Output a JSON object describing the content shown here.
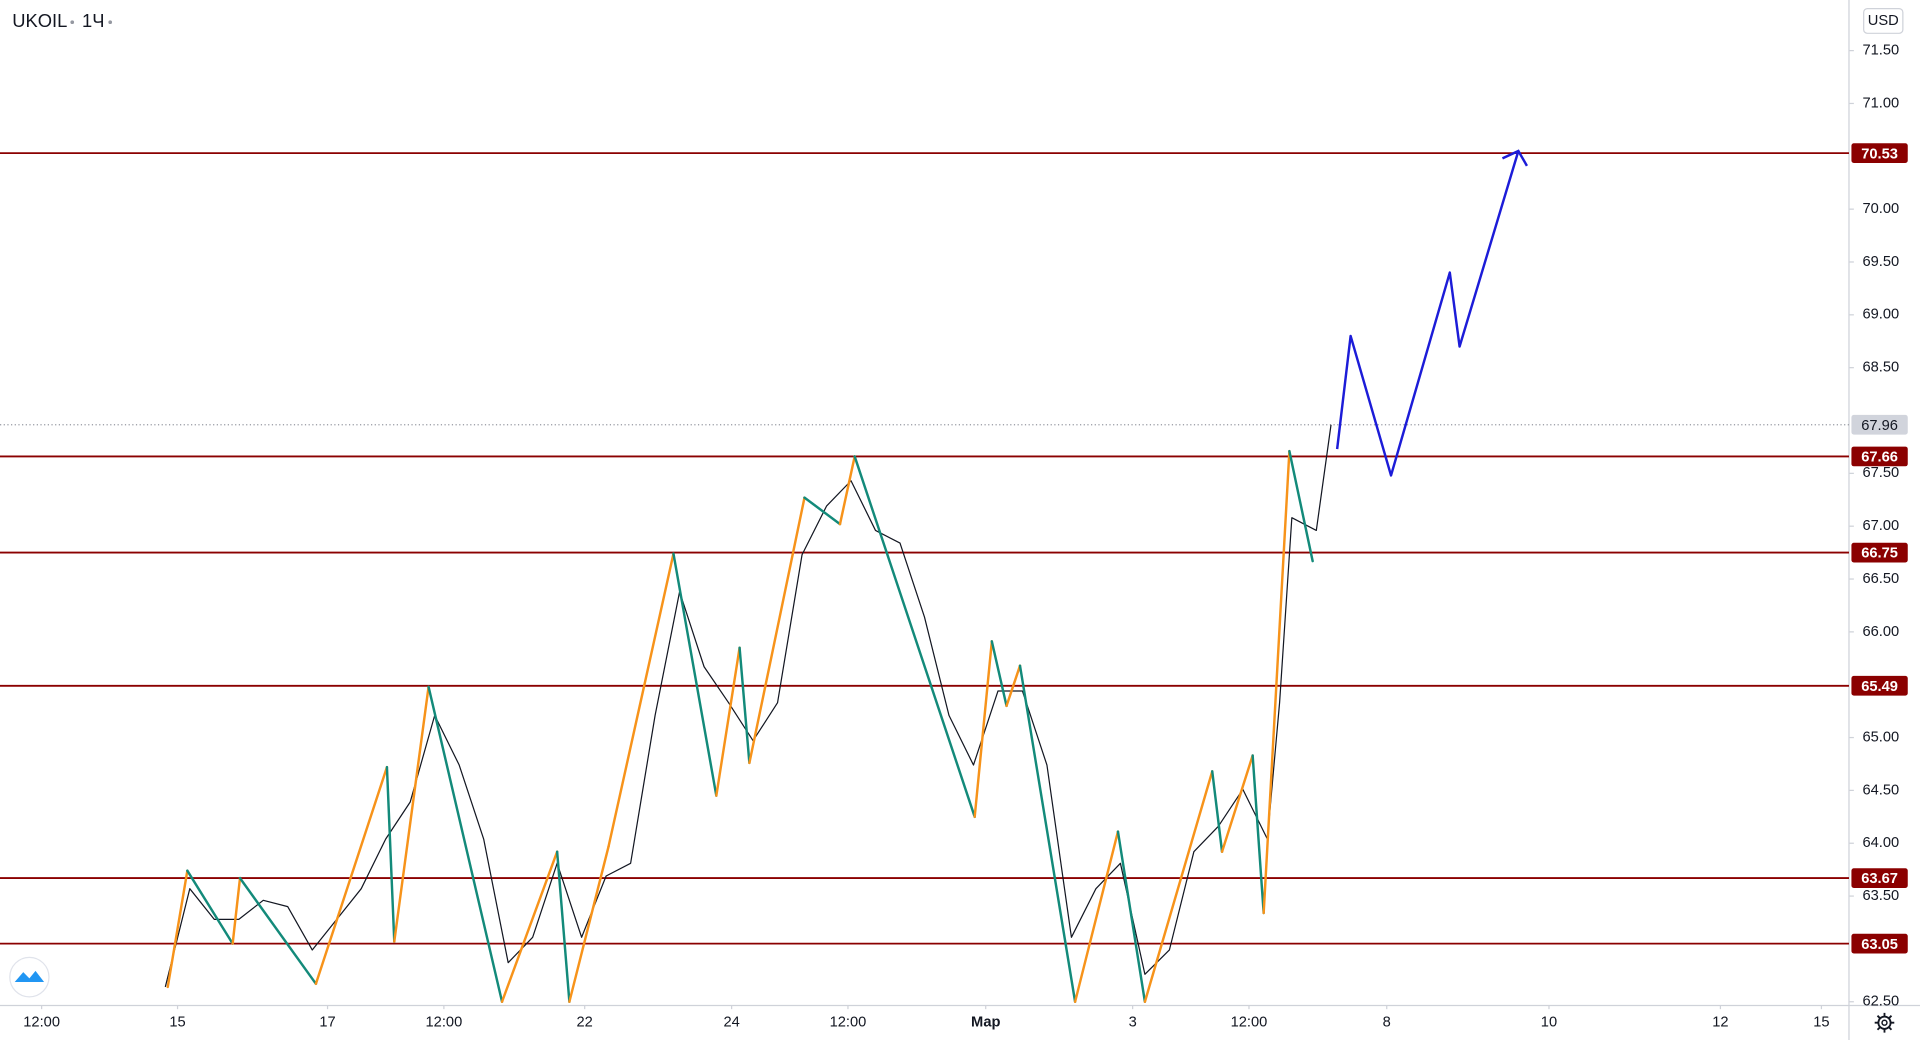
{
  "chart_data": {
    "type": "line",
    "symbol": "UKOIL",
    "interval": "1Ч",
    "currency": "USD",
    "xlim": [
      0,
      604
    ],
    "ylim": [
      62.465,
      71.979
    ],
    "xticks": [
      {
        "value": 13.6,
        "label": "12:00"
      },
      {
        "value": 58,
        "label": "15"
      },
      {
        "value": 107,
        "label": "17"
      },
      {
        "value": 145,
        "label": "12:00"
      },
      {
        "value": 191,
        "label": "22"
      },
      {
        "value": 239,
        "label": "24"
      },
      {
        "value": 277,
        "label": "12:00"
      },
      {
        "value": 322,
        "label": "Мар"
      },
      {
        "value": 370,
        "label": "3"
      },
      {
        "value": 408,
        "label": "12:00"
      },
      {
        "value": 453,
        "label": "8"
      },
      {
        "value": 506,
        "label": "10"
      },
      {
        "value": 562,
        "label": "12"
      },
      {
        "value": 595,
        "label": "15"
      }
    ],
    "yticks": [
      {
        "value": 71.5,
        "label": "71.50"
      },
      {
        "value": 71,
        "label": "71.00"
      },
      {
        "value": 70,
        "label": "70.00"
      },
      {
        "value": 69.5,
        "label": "69.50"
      },
      {
        "value": 69,
        "label": "69.00"
      },
      {
        "value": 68.5,
        "label": "68.50"
      },
      {
        "value": 67.5,
        "label": "67.50"
      },
      {
        "value": 67,
        "label": "67.00"
      },
      {
        "value": 66.5,
        "label": "66.50"
      },
      {
        "value": 66,
        "label": "66.00"
      },
      {
        "value": 65,
        "label": "65.00"
      },
      {
        "value": 64.5,
        "label": "64.50"
      },
      {
        "value": 64,
        "label": "64.00"
      },
      {
        "value": 63.5,
        "label": "63.50"
      },
      {
        "value": 62.5,
        "label": "62.50"
      }
    ],
    "price": {
      "color": "#131722",
      "x": [
        54,
        62,
        70,
        78,
        86,
        94,
        102,
        110,
        118,
        126,
        134,
        142,
        150,
        158,
        166,
        174,
        182,
        190,
        198,
        206,
        214,
        222,
        230,
        238,
        246,
        254,
        262,
        270,
        278,
        286,
        294,
        302,
        310,
        318,
        326,
        334,
        342,
        350,
        358,
        366,
        374,
        382,
        390,
        398,
        406,
        414,
        418,
        422,
        430,
        434.8
      ],
      "values": [
        62.64,
        63.57,
        63.28,
        63.28,
        63.46,
        63.4,
        62.99,
        63.28,
        63.57,
        64.04,
        64.39,
        65.21,
        64.74,
        64.04,
        62.87,
        63.11,
        63.81,
        63.11,
        63.69,
        63.81,
        65.21,
        66.38,
        65.67,
        65.33,
        64.97,
        65.33,
        66.73,
        67.19,
        67.43,
        66.96,
        66.84,
        66.14,
        65.21,
        64.74,
        65.44,
        65.44,
        64.74,
        63.11,
        63.57,
        63.81,
        62.76,
        62.99,
        63.92,
        64.16,
        64.51,
        64.04,
        65.33,
        67.08,
        66.96,
        67.96
      ]
    },
    "last_price": 67.96,
    "last_price_color": "#9598a1",
    "zigzag": {
      "up_color": "#f7931a",
      "down_color": "#138a7a",
      "x": [
        54.8,
        61.2,
        76,
        78.4,
        103.2,
        126.4,
        128.8,
        140,
        164,
        182,
        186,
        198.8,
        220,
        234,
        241.6,
        244.8,
        262.8,
        274.4,
        279.2,
        318.4,
        324,
        328.8,
        333.2,
        351.2,
        365.2,
        374,
        396,
        399.2,
        409.2,
        412.8,
        421.2,
        428.8
      ],
      "values": [
        62.64,
        63.74,
        63.05,
        63.67,
        62.67,
        64.72,
        63.07,
        65.48,
        62.5,
        63.92,
        62.5,
        63.97,
        66.74,
        64.45,
        65.85,
        64.76,
        67.27,
        67.02,
        67.66,
        64.25,
        65.91,
        65.3,
        65.68,
        62.5,
        64.11,
        62.5,
        64.68,
        63.92,
        64.83,
        63.34,
        67.71,
        66.67
      ]
    },
    "projection": {
      "color": "#1c1cd8",
      "x": [
        436.8,
        441.2,
        454.4,
        473.6,
        476.8,
        496
      ],
      "values": [
        67.73,
        68.8,
        67.48,
        69.4,
        68.7,
        70.55
      ]
    },
    "levels": {
      "color": "#8b0000",
      "values": [
        70.53,
        67.66,
        66.75,
        65.49,
        63.67,
        63.05
      ]
    }
  }
}
